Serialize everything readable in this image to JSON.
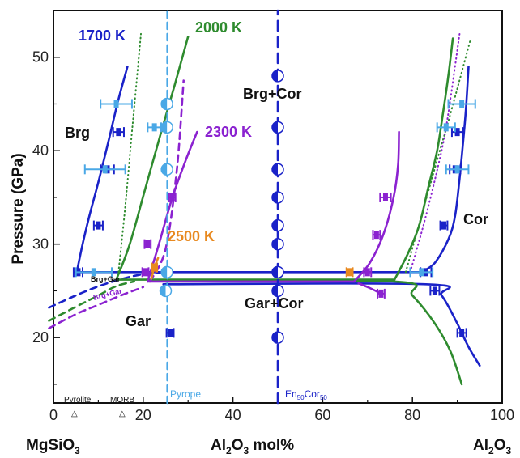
{
  "chart_data": {
    "type": "line",
    "title": "",
    "ylabel": "Pressure (GPa)",
    "xlabel_left": "MgSiO",
    "xlabel_left_sub": "3",
    "xlabel_mid_a": "Al",
    "xlabel_mid_sub1": "2",
    "xlabel_mid_b": "O",
    "xlabel_mid_sub2": "3",
    "xlabel_mid_c": " mol%",
    "xlabel_right_a": "Al",
    "xlabel_right_sub1": "2",
    "xlabel_right_b": "O",
    "xlabel_right_sub2": "3",
    "xlim": [
      0,
      100
    ],
    "ylim": [
      13,
      55
    ],
    "xticks": [
      "0",
      "20",
      "40",
      "60",
      "80",
      "100"
    ],
    "yticks": [
      "20",
      "30",
      "40",
      "50"
    ],
    "phase_labels": {
      "brg": "Brg",
      "gar": "Gar",
      "cor": "Cor",
      "brg_cor": "Brg+Cor",
      "gar_cor": "Gar+Cor",
      "brg_gar": "Brg+Gar",
      "brg_gar2": "Brg+Gar"
    },
    "temperature_labels": {
      "t1700": "1700 K",
      "t2000": "2000 K",
      "t2300": "2300 K",
      "t2500": "2500 K"
    },
    "reference_labels": {
      "pyrolite": "Pyrolite",
      "morb": "MORB",
      "pyrope": "Pyrope",
      "en_a": "En",
      "en_sub1": "50",
      "en_b": "Cor",
      "en_sub2": "50"
    },
    "reference_positions": {
      "pyrolite": 7,
      "morb": 16,
      "pyrope": 25.4,
      "en50cor50": 50
    },
    "colors": {
      "k1700": "#1a22c8",
      "k2000": "#2e8b2e",
      "k2300": "#8b22d0",
      "k2500": "#e8891f",
      "pyrope": "#4aa8e6",
      "en50": "#1a22c8"
    },
    "series": [
      {
        "name": "1700 K",
        "color": "#1a22c8",
        "dash": "",
        "points": [
          [
            5.2,
            27
          ],
          [
            6.5,
            30
          ],
          [
            8,
            33
          ],
          [
            10.2,
            37
          ],
          [
            12.5,
            41.5
          ],
          [
            14.5,
            45.5
          ],
          [
            16.5,
            49
          ]
        ]
      },
      {
        "name": "1700 K",
        "color": "#1a22c8",
        "dash": "",
        "points": [
          [
            5.2,
            27
          ],
          [
            82,
            27
          ]
        ]
      },
      {
        "name": "1700 K",
        "color": "#1a22c8",
        "dash": "",
        "points": [
          [
            82,
            27
          ],
          [
            85,
            28
          ],
          [
            88,
            30.5
          ],
          [
            89.5,
            33
          ],
          [
            90.5,
            37
          ],
          [
            91.5,
            42
          ],
          [
            92,
            45
          ],
          [
            92.5,
            49
          ]
        ]
      },
      {
        "name": "1700 K",
        "color": "#1a22c8",
        "dash": "",
        "points": [
          [
            24.5,
            25.7
          ],
          [
            83,
            25.7
          ],
          [
            86.5,
            24.5
          ],
          [
            90,
            21.5
          ],
          [
            92.5,
            19
          ],
          [
            95,
            17
          ]
        ]
      },
      {
        "name": "1700 K",
        "color": "#1a22c8",
        "dash": "8,6",
        "points": [
          [
            -1,
            23.2
          ],
          [
            4,
            24.3
          ],
          [
            9,
            25.3
          ],
          [
            14,
            26.1
          ],
          [
            19,
            26.7
          ],
          [
            24.5,
            27
          ]
        ]
      },
      {
        "name": "2000 K",
        "color": "#2e8b2e",
        "dash": "",
        "points": [
          [
            14,
            26.2
          ],
          [
            17,
            30
          ],
          [
            20.5,
            36
          ],
          [
            24,
            42
          ],
          [
            27,
            47
          ],
          [
            30,
            52.2
          ]
        ]
      },
      {
        "name": "2000 K",
        "color": "#2e8b2e",
        "dash": "",
        "points": [
          [
            14,
            26.2
          ],
          [
            76,
            26.2
          ]
        ]
      },
      {
        "name": "2000 K",
        "color": "#2e8b2e",
        "dash": "",
        "points": [
          [
            76,
            26.2
          ],
          [
            79,
            29
          ],
          [
            81.5,
            32
          ],
          [
            83.5,
            36
          ],
          [
            85.5,
            40
          ],
          [
            86.8,
            44
          ],
          [
            88,
            48
          ],
          [
            89,
            52
          ]
        ]
      },
      {
        "name": "2000 K",
        "color": "#2e8b2e",
        "dash": "",
        "points": [
          [
            25,
            26
          ],
          [
            76,
            26
          ],
          [
            80,
            24.5
          ],
          [
            85,
            21.5
          ],
          [
            88.5,
            18.5
          ],
          [
            91,
            15
          ]
        ]
      },
      {
        "name": "2000 K",
        "color": "#2e8b2e",
        "dash": "8,6",
        "points": [
          [
            -1,
            21.8
          ],
          [
            5,
            23.3
          ],
          [
            10,
            24.5
          ],
          [
            14,
            25.5
          ],
          [
            18,
            26
          ]
        ]
      },
      {
        "name": "2000 K",
        "color": "#2e8b2e",
        "dash": "1,4",
        "points": [
          [
            14.5,
            27
          ],
          [
            16,
            34
          ],
          [
            17.5,
            42
          ],
          [
            19.5,
            52.5
          ]
        ]
      },
      {
        "name": "2000 K",
        "color": "#2e8b2e",
        "dash": "1,4",
        "points": [
          [
            78.5,
            27
          ],
          [
            82,
            33
          ],
          [
            85.5,
            39
          ],
          [
            88.5,
            44
          ],
          [
            93,
            52
          ]
        ]
      },
      {
        "name": "2300 K",
        "color": "#8b22d0",
        "dash": "",
        "points": [
          [
            21,
            26
          ],
          [
            23.5,
            30
          ],
          [
            26.5,
            35
          ],
          [
            29.5,
            39
          ],
          [
            32,
            42
          ]
        ]
      },
      {
        "name": "2300 K",
        "color": "#8b22d0",
        "dash": "",
        "points": [
          [
            21,
            26
          ],
          [
            67,
            26
          ]
        ]
      },
      {
        "name": "2300 K",
        "color": "#8b22d0",
        "dash": "",
        "points": [
          [
            67,
            26
          ],
          [
            70.5,
            28
          ],
          [
            73.5,
            31
          ],
          [
            75.8,
            35
          ],
          [
            76.8,
            38.5
          ],
          [
            77,
            42
          ]
        ]
      },
      {
        "name": "2300 K",
        "color": "#8b22d0",
        "dash": "",
        "points": [
          [
            68,
            25.8
          ],
          [
            70.5,
            25.3
          ],
          [
            73,
            24.7
          ]
        ]
      },
      {
        "name": "2300 K",
        "color": "#8b22d0",
        "dash": "8,6",
        "points": [
          [
            21.5,
            26
          ],
          [
            25,
            29.5
          ],
          [
            27.5,
            38
          ],
          [
            29,
            47.5
          ]
        ]
      },
      {
        "name": "2300 K",
        "color": "#8b22d0",
        "dash": "8,6",
        "points": [
          [
            -1,
            21
          ],
          [
            5,
            22.5
          ],
          [
            10,
            23.5
          ],
          [
            15,
            24.5
          ],
          [
            20,
            25.4
          ]
        ]
      },
      {
        "name": "2300 K",
        "color": "#8b22d0",
        "dash": "1,4",
        "points": [
          [
            79.5,
            27
          ],
          [
            83,
            33
          ],
          [
            86.5,
            40
          ],
          [
            88,
            44
          ],
          [
            90.5,
            52.5
          ]
        ]
      },
      {
        "name": "2500 K",
        "color": "#e8891f",
        "dash": "",
        "points": [
          [
            21.8,
            26.3
          ],
          [
            22.5,
            27.5
          ],
          [
            23.3,
            28.5
          ]
        ]
      },
      {
        "name": "Pyrope",
        "color": "#4aa8e6",
        "dash": "8,6",
        "points": [
          [
            25.4,
            13
          ],
          [
            25.4,
            55
          ]
        ]
      },
      {
        "name": "En50Cor50",
        "color": "#1a22c8",
        "dash": "12,8",
        "points": [
          [
            50,
            13
          ],
          [
            50,
            55
          ]
        ]
      }
    ],
    "points": [
      {
        "x": 25.3,
        "y": 45,
        "color": "#4aa8e6"
      },
      {
        "x": 25.3,
        "y": 42.5,
        "color": "#4aa8e6"
      },
      {
        "x": 25.3,
        "y": 38,
        "color": "#4aa8e6"
      },
      {
        "x": 25.3,
        "y": 27,
        "color": "#4aa8e6"
      },
      {
        "x": 25,
        "y": 25,
        "color": "#4aa8e6"
      },
      {
        "x": 50,
        "y": 48,
        "color": "#1a22c8"
      },
      {
        "x": 50,
        "y": 42.5,
        "color": "#1a22c8"
      },
      {
        "x": 50,
        "y": 38,
        "color": "#1a22c8"
      },
      {
        "x": 50,
        "y": 35,
        "color": "#1a22c8"
      },
      {
        "x": 50,
        "y": 32,
        "color": "#1a22c8"
      },
      {
        "x": 50,
        "y": 30,
        "color": "#1a22c8"
      },
      {
        "x": 50,
        "y": 27,
        "color": "#1a22c8"
      },
      {
        "x": 50,
        "y": 25,
        "color": "#1a22c8"
      },
      {
        "x": 50,
        "y": 20,
        "color": "#1a22c8"
      }
    ],
    "error_bars": [
      {
        "x": 10,
        "y": 32,
        "dx": 1,
        "color": "#1a22c8"
      },
      {
        "x": 12,
        "y": 38,
        "dx": 1.5,
        "color": "#1a22c8"
      },
      {
        "x": 14.5,
        "y": 42,
        "dx": 1.2,
        "color": "#1a22c8"
      },
      {
        "x": 5.5,
        "y": 27,
        "dx": 1,
        "color": "#1a22c8"
      },
      {
        "x": 26,
        "y": 20.5,
        "dx": 0.8,
        "color": "#1a22c8"
      },
      {
        "x": 90,
        "y": 42,
        "dx": 1.2,
        "color": "#1a22c8"
      },
      {
        "x": 89.5,
        "y": 38,
        "dx": 1.2,
        "color": "#1a22c8"
      },
      {
        "x": 87,
        "y": 32,
        "dx": 0.8,
        "color": "#1a22c8"
      },
      {
        "x": 85,
        "y": 25,
        "dx": 1,
        "color": "#1a22c8"
      },
      {
        "x": 91,
        "y": 20.5,
        "dx": 1,
        "color": "#1a22c8"
      },
      {
        "x": 83,
        "y": 27,
        "dx": 1.2,
        "color": "#1a22c8"
      },
      {
        "x": 14,
        "y": 45,
        "dx": 3.5,
        "color": "#4aa8e6"
      },
      {
        "x": 11.5,
        "y": 38,
        "dx": 4.5,
        "color": "#4aa8e6"
      },
      {
        "x": 22.5,
        "y": 42.5,
        "dx": 1.5,
        "color": "#4aa8e6"
      },
      {
        "x": 9,
        "y": 27,
        "dx": 4,
        "color": "#4aa8e6"
      },
      {
        "x": 91,
        "y": 45,
        "dx": 3,
        "color": "#4aa8e6"
      },
      {
        "x": 87.5,
        "y": 42.5,
        "dx": 2,
        "color": "#4aa8e6"
      },
      {
        "x": 90,
        "y": 38,
        "dx": 2.5,
        "color": "#4aa8e6"
      },
      {
        "x": 82,
        "y": 27,
        "dx": 2.5,
        "color": "#4aa8e6"
      },
      {
        "x": 26.5,
        "y": 35,
        "dx": 0.7,
        "color": "#8b22d0"
      },
      {
        "x": 21,
        "y": 30,
        "dx": 0.7,
        "color": "#8b22d0"
      },
      {
        "x": 20.5,
        "y": 27,
        "dx": 0.7,
        "color": "#8b22d0"
      },
      {
        "x": 74,
        "y": 35,
        "dx": 1.2,
        "color": "#8b22d0"
      },
      {
        "x": 72,
        "y": 31,
        "dx": 0.8,
        "color": "#8b22d0"
      },
      {
        "x": 70,
        "y": 27,
        "dx": 0.8,
        "color": "#8b22d0"
      },
      {
        "x": 73,
        "y": 24.7,
        "dx": 0.8,
        "color": "#8b22d0"
      },
      {
        "x": 66,
        "y": 27,
        "dx": 0.7,
        "color": "#e8891f"
      },
      {
        "x": 22.5,
        "y": 27.5,
        "dx": 0.6,
        "color": "#e8891f"
      }
    ]
  }
}
